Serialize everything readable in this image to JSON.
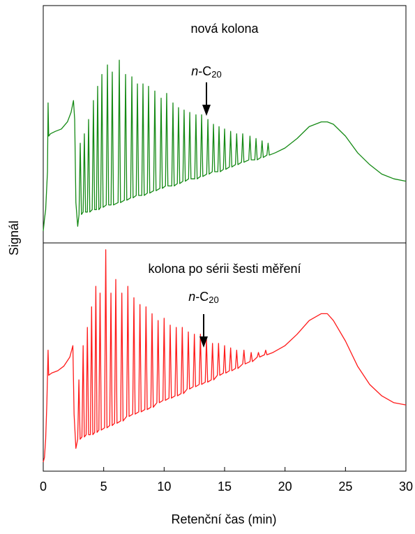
{
  "chart_data": {
    "type": "line",
    "x_label": "Retenční čas (min)",
    "y_label": "Signál",
    "xlim": [
      0,
      30
    ],
    "xticks": [
      0,
      5,
      10,
      15,
      20,
      25,
      30
    ],
    "panels": [
      {
        "title": "nová kolona",
        "annotation": {
          "italic": "n",
          "text": "-C",
          "sub": "20"
        },
        "ylim": [
          0,
          100
        ],
        "series": [
          {
            "color": "#158a15",
            "x": [
              0,
              0.1,
              0.2,
              0.35,
              0.4,
              0.45,
              0.6,
              1.0,
              1.5,
              2.0,
              2.3,
              2.5,
              2.6,
              2.7,
              2.85,
              2.96,
              3.06,
              3.16,
              3.3,
              3.4,
              3.5,
              3.65,
              3.75,
              3.85,
              4.05,
              4.15,
              4.25,
              4.4,
              4.5,
              4.6,
              4.75,
              4.85,
              4.95,
              5.21,
              5.31,
              5.41,
              5.61,
              5.71,
              5.81,
              6.19,
              6.29,
              6.39,
              6.71,
              6.81,
              6.91,
              7.23,
              7.33,
              7.43,
              7.69,
              7.79,
              7.89,
              8.15,
              8.25,
              8.35,
              8.61,
              8.71,
              8.81,
              9.13,
              9.23,
              9.33,
              9.65,
              9.75,
              9.85,
              10.11,
              10.21,
              10.31,
              10.63,
              10.73,
              10.83,
              11.09,
              11.19,
              11.29,
              11.55,
              11.65,
              11.75,
              12.02,
              12.12,
              12.22,
              12.53,
              12.63,
              12.73,
              13.0,
              13.1,
              13.2,
              13.52,
              13.62,
              13.72,
              13.98,
              14.08,
              14.18,
              14.44,
              14.54,
              14.64,
              14.9,
              15.0,
              15.1,
              15.4,
              15.5,
              15.6,
              15.9,
              16.0,
              16.1,
              16.4,
              16.5,
              16.6,
              17.0,
              17.1,
              17.2,
              17.5,
              17.6,
              17.7,
              18.0,
              18.1,
              18.2,
              18.5,
              18.6,
              18.7,
              19.2,
              20,
              21,
              22,
              23,
              23.5,
              24,
              25,
              26,
              27,
              28,
              29,
              30
            ],
            "values": [
              5,
              10,
              14,
              30,
              59,
              45,
              46,
              47,
              48,
              51,
              55,
              60,
              52,
              17,
              7,
              12,
              42,
              12,
              13,
              46,
              13,
              13,
              52,
              13,
              14,
              60,
              14,
              14,
              66,
              14,
              15,
              71,
              15,
              16,
              75,
              16,
              16,
              72,
              16,
              17,
              77,
              17,
              18,
              71,
              18,
              19,
              70,
              19,
              20,
              67,
              20,
              20,
              67,
              20,
              21,
              66,
              21,
              22,
              64,
              22,
              23,
              61,
              23,
              24,
              63,
              24,
              24,
              59,
              24,
              25,
              57,
              25,
              26,
              56,
              26,
              27,
              55,
              27,
              27,
              54,
              27,
              28,
              54,
              28,
              29,
              52,
              29,
              30,
              50,
              30,
              30,
              49,
              30,
              31,
              48,
              31,
              32,
              47,
              32,
              33,
              46,
              33,
              34,
              46,
              34,
              35,
              45,
              35,
              35,
              44,
              35,
              36,
              43,
              36,
              37,
              42,
              37,
              38,
              40,
              44,
              49,
              51,
              51,
              50,
              45,
              38,
              33,
              29,
              27,
              26
            ]
          }
        ]
      },
      {
        "title": "kolona po sérii šesti měření",
        "annotation": {
          "italic": "n",
          "text": "-C",
          "sub": "20"
        },
        "ylim": [
          0,
          100
        ],
        "series": [
          {
            "color": "#ff1a1a",
            "x": [
              0,
              0.1,
              0.2,
              0.3,
              0.4,
              0.45,
              0.7,
              1.2,
              1.7,
              2.2,
              2.45,
              2.55,
              2.7,
              2.85,
              2.95,
              3.05,
              3.2,
              3.3,
              3.4,
              3.55,
              3.65,
              3.75,
              3.9,
              4.0,
              4.1,
              4.25,
              4.35,
              4.45,
              4.6,
              4.7,
              4.8,
              5.07,
              5.17,
              5.27,
              5.5,
              5.6,
              5.7,
              5.9,
              6.0,
              6.1,
              6.4,
              6.5,
              6.6,
              6.9,
              7.0,
              7.1,
              7.4,
              7.5,
              7.6,
              7.9,
              8.0,
              8.1,
              8.4,
              8.5,
              8.6,
              8.9,
              9.0,
              9.1,
              9.4,
              9.5,
              9.6,
              9.9,
              10.0,
              10.1,
              10.4,
              10.5,
              10.6,
              10.9,
              11.0,
              11.1,
              11.4,
              11.5,
              11.6,
              11.9,
              12.0,
              12.1,
              12.4,
              12.5,
              12.6,
              12.9,
              13.0,
              13.1,
              13.4,
              13.5,
              13.6,
              13.9,
              14.0,
              14.1,
              14.4,
              14.5,
              14.6,
              14.9,
              15.0,
              15.1,
              15.4,
              15.5,
              15.6,
              15.9,
              16.0,
              16.1,
              16.5,
              16.6,
              16.7,
              17.1,
              17.2,
              17.3,
              17.7,
              17.8,
              17.9,
              18.3,
              18.4,
              18.5,
              19,
              20,
              21,
              22,
              23,
              23.5,
              24,
              25,
              26,
              27,
              28,
              29,
              30
            ],
            "values": [
              4,
              6,
              14,
              30,
              53,
              42,
              43,
              44,
              46,
              50,
              55,
              25,
              10,
              14,
              40,
              14,
              15,
              55,
              15,
              16,
              63,
              16,
              16,
              72,
              16,
              17,
              81,
              17,
              18,
              78,
              18,
              19,
              97,
              19,
              20,
              78,
              20,
              21,
              84,
              21,
              22,
              78,
              22,
              24,
              81,
              24,
              25,
              76,
              25,
              26,
              73,
              26,
              27,
              72,
              27,
              28,
              69,
              28,
              30,
              66,
              30,
              31,
              67,
              31,
              32,
              64,
              32,
              33,
              63,
              33,
              34,
              63,
              34,
              36,
              61,
              36,
              37,
              60,
              37,
              38,
              60,
              38,
              39,
              58,
              39,
              40,
              56,
              40,
              42,
              56,
              42,
              43,
              55,
              43,
              44,
              54,
              44,
              45,
              53,
              45,
              47,
              53,
              47,
              48,
              52,
              48,
              50,
              52,
              50,
              51,
              53,
              51,
              52,
              55,
              60,
              66,
              69,
              69,
              66,
              57,
              46,
              38,
              33,
              30,
              29
            ]
          }
        ]
      }
    ]
  }
}
